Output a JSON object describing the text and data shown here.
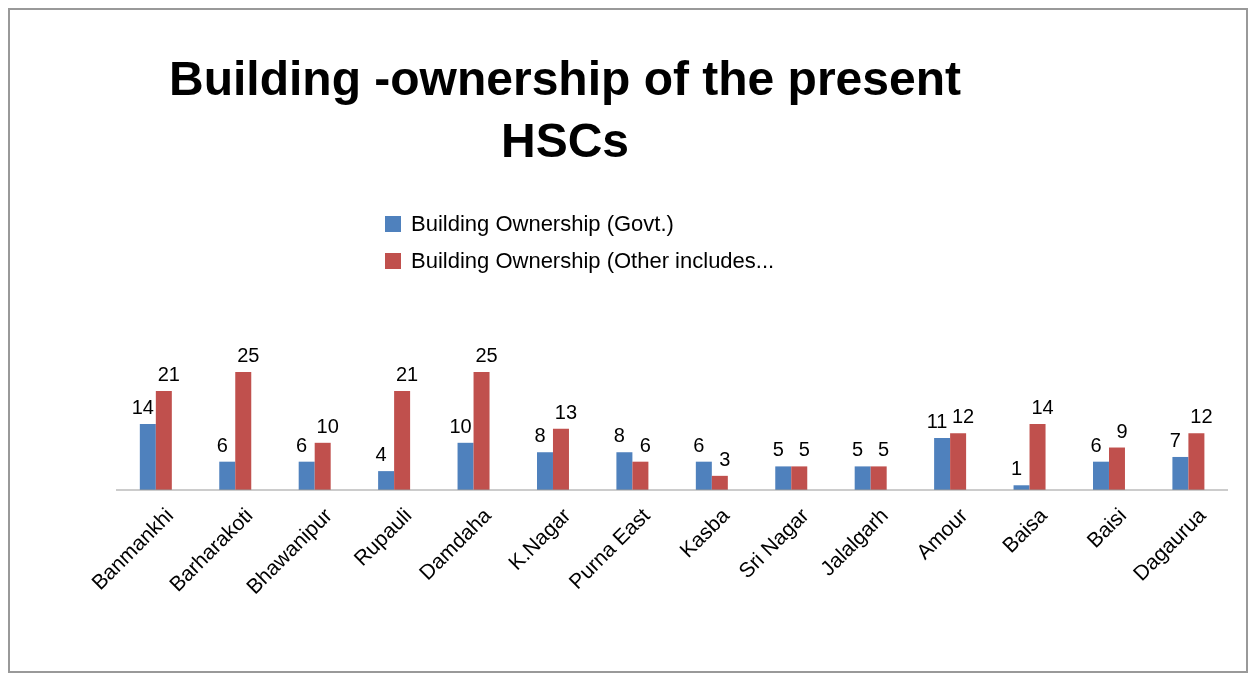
{
  "chart_data": {
    "type": "bar",
    "title": "Building -ownership of the present HSCs",
    "categories": [
      "Banmankhi",
      "Barharakoti",
      "Bhawanipur",
      "Rupauli",
      "Damdaha",
      "K.Nagar",
      "Purna East",
      "Kasba",
      "Sri Nagar",
      "Jalalgarh",
      "Amour",
      "Baisa",
      "Baisi",
      "Dagaurua"
    ],
    "series": [
      {
        "name": "Building Ownership (Govt.)",
        "color": "#4f81bd",
        "values": [
          14,
          6,
          6,
          4,
          10,
          8,
          8,
          6,
          5,
          5,
          11,
          1,
          6,
          7
        ]
      },
      {
        "name": "Building Ownership (Other includes...",
        "color": "#c0504d",
        "values": [
          21,
          25,
          10,
          21,
          25,
          13,
          6,
          3,
          5,
          5,
          12,
          14,
          9,
          12
        ]
      }
    ],
    "data_labels": true,
    "legend": "top",
    "grid": false
  }
}
